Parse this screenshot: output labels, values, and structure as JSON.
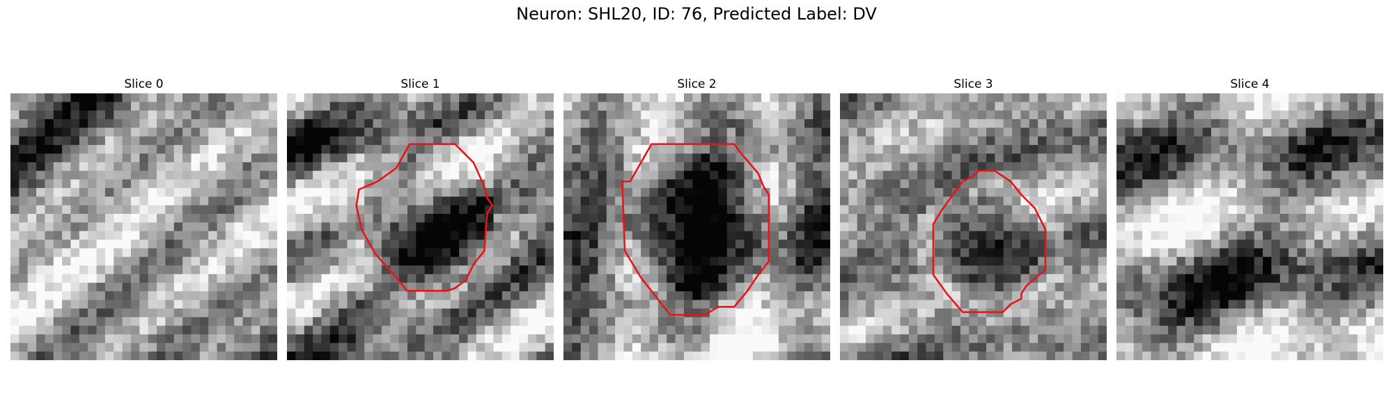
{
  "figure": {
    "title": "Neuron: SHL20, ID: 76, Predicted Label: DV",
    "contour_color": "#e8141a"
  },
  "panels": [
    {
      "label": "Slice 0",
      "seed": 11,
      "contour": null,
      "dark_blob": null
    },
    {
      "label": "Slice 1",
      "seed": 23,
      "contour": [
        [
          0.34,
          0.33
        ],
        [
          0.41,
          0.28
        ],
        [
          0.46,
          0.19
        ],
        [
          0.63,
          0.19
        ],
        [
          0.66,
          0.22
        ],
        [
          0.7,
          0.26
        ],
        [
          0.74,
          0.35
        ],
        [
          0.75,
          0.39
        ],
        [
          0.77,
          0.42
        ],
        [
          0.75,
          0.45
        ],
        [
          0.74,
          0.59
        ],
        [
          0.7,
          0.64
        ],
        [
          0.67,
          0.7
        ],
        [
          0.63,
          0.73
        ],
        [
          0.6,
          0.74
        ],
        [
          0.45,
          0.74
        ],
        [
          0.41,
          0.69
        ],
        [
          0.33,
          0.6
        ],
        [
          0.28,
          0.51
        ],
        [
          0.26,
          0.42
        ],
        [
          0.27,
          0.36
        ]
      ],
      "dark_blob": [
        0.51,
        0.46,
        0.26
      ]
    },
    {
      "label": "Slice 2",
      "seed": 37,
      "contour": [
        [
          0.25,
          0.33
        ],
        [
          0.33,
          0.19
        ],
        [
          0.64,
          0.19
        ],
        [
          0.67,
          0.23
        ],
        [
          0.73,
          0.3
        ],
        [
          0.75,
          0.35
        ],
        [
          0.77,
          0.38
        ],
        [
          0.77,
          0.63
        ],
        [
          0.73,
          0.68
        ],
        [
          0.69,
          0.74
        ],
        [
          0.64,
          0.8
        ],
        [
          0.58,
          0.8
        ],
        [
          0.53,
          0.83
        ],
        [
          0.4,
          0.83
        ],
        [
          0.29,
          0.69
        ],
        [
          0.23,
          0.59
        ],
        [
          0.22,
          0.33
        ]
      ],
      "dark_blob": [
        0.5,
        0.48,
        0.28
      ]
    },
    {
      "label": "Slice 3",
      "seed": 51,
      "contour": [
        [
          0.38,
          0.44
        ],
        [
          0.46,
          0.33
        ],
        [
          0.5,
          0.31
        ],
        [
          0.52,
          0.29
        ],
        [
          0.58,
          0.29
        ],
        [
          0.64,
          0.33
        ],
        [
          0.68,
          0.38
        ],
        [
          0.73,
          0.43
        ],
        [
          0.77,
          0.51
        ],
        [
          0.77,
          0.66
        ],
        [
          0.7,
          0.72
        ],
        [
          0.68,
          0.75
        ],
        [
          0.68,
          0.77
        ],
        [
          0.64,
          0.79
        ],
        [
          0.61,
          0.82
        ],
        [
          0.46,
          0.82
        ],
        [
          0.4,
          0.75
        ],
        [
          0.35,
          0.68
        ],
        [
          0.35,
          0.49
        ]
      ],
      "dark_blob": [
        0.55,
        0.56,
        0.21
      ]
    },
    {
      "label": "Slice 4",
      "seed": 67,
      "contour": null,
      "dark_blob": null
    }
  ]
}
